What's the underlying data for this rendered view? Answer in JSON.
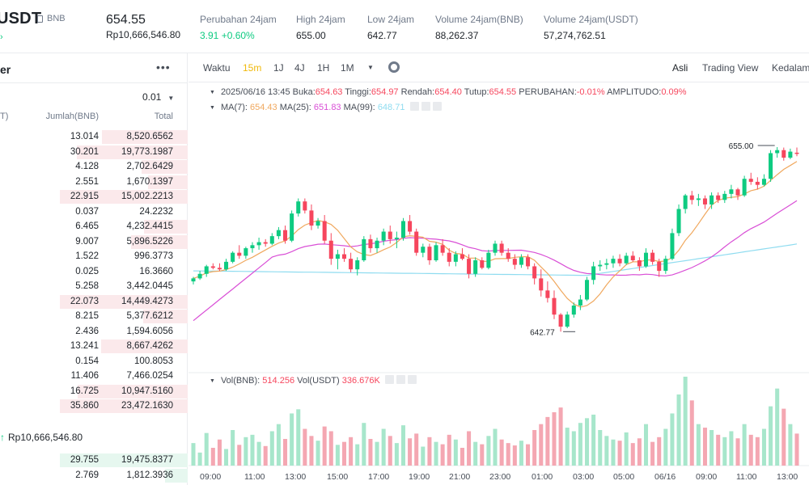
{
  "header": {
    "pair": "USDT",
    "base_tag": "BNB",
    "price": "654.55",
    "price_idr": "Rp10,666,546.80",
    "stats": [
      {
        "label": "Perubahan 24jam",
        "value": "3.91 +0.60%",
        "green": true
      },
      {
        "label": "High 24jam",
        "value": "655.00"
      },
      {
        "label": "Low 24jam",
        "value": "642.77"
      },
      {
        "label": "Volume 24jam(BNB)",
        "value": "88,262.37"
      },
      {
        "label": "Volume 24jam(USDT)",
        "value": "57,274,762.51"
      }
    ]
  },
  "orderbook": {
    "title": "er",
    "more": "•••",
    "step": "0.01",
    "col_price": "T)",
    "col_amount": "Jumlah(BNB)",
    "col_total": "Total",
    "asks": [
      {
        "amount": "13.014",
        "total": "8,520.6562",
        "depth": 0.67
      },
      {
        "amount": "30.201",
        "total": "19,773.1987",
        "depth": 0.87
      },
      {
        "amount": "4.128",
        "total": "2,702.6429",
        "depth": 0.36
      },
      {
        "amount": "2.551",
        "total": "1,670.1397",
        "depth": 0.31
      },
      {
        "amount": "22.915",
        "total": "15,002.2213",
        "depth": 1.0
      },
      {
        "amount": "0.037",
        "total": "24.2232",
        "depth": 0.0
      },
      {
        "amount": "6.465",
        "total": "4,232.4415",
        "depth": 0.34
      },
      {
        "amount": "9.007",
        "total": "5,896.5226",
        "depth": 0.44
      },
      {
        "amount": "1.522",
        "total": "996.3773",
        "depth": 0.0
      },
      {
        "amount": "0.025",
        "total": "16.3660",
        "depth": 0.0
      },
      {
        "amount": "5.258",
        "total": "3,442.0445",
        "depth": 0.0
      },
      {
        "amount": "22.073",
        "total": "14,449.4273",
        "depth": 1.0
      },
      {
        "amount": "8.215",
        "total": "5,377.6212",
        "depth": 0.35
      },
      {
        "amount": "2.436",
        "total": "1,594.6056",
        "depth": 0.0
      },
      {
        "amount": "13.241",
        "total": "8,667.4262",
        "depth": 0.68
      },
      {
        "amount": "0.154",
        "total": "100.8053",
        "depth": 0.0
      },
      {
        "amount": "11.406",
        "total": "7,466.0254",
        "depth": 0.0
      },
      {
        "amount": "16.725",
        "total": "10,947.5160",
        "depth": 0.86
      },
      {
        "amount": "35.860",
        "total": "23,472.1630",
        "depth": 1.0
      }
    ],
    "mid_price": "Rp10,666,546.80",
    "bids": [
      {
        "amount": "29.755",
        "total": "19,475.8377",
        "depth": 1.0
      },
      {
        "amount": "2.769",
        "total": "1,812.3936",
        "depth": 0.18
      }
    ]
  },
  "chart": {
    "toolbar": {
      "time_label": "Waktu",
      "intervals": [
        "15m",
        "1J",
        "4J",
        "1H",
        "1M"
      ],
      "active_interval": "15m",
      "views": [
        "Asli",
        "Trading View",
        "Kedalam"
      ],
      "active_view": "Asli"
    },
    "ohlc": {
      "date": "2025/06/16 13:45",
      "open_label": "Buka:",
      "open": "654.63",
      "high_label": "Tinggi:",
      "high": "654.97",
      "low_label": "Rendah:",
      "low": "654.40",
      "close_label": "Tutup:",
      "close": "654.55",
      "change_label": "PERUBAHAN:",
      "change": "-0.01%",
      "amp_label": "AMPLITUDO:",
      "amp": "0.09%"
    },
    "ma": {
      "ma7_label": "MA(7):",
      "ma7": "654.43",
      "ma25_label": "MA(25):",
      "ma25": "651.83",
      "ma99_label": "MA(99):",
      "ma99": "648.71"
    },
    "vol": {
      "label": "Vol(BNB):",
      "bnb": "514.256",
      "usdt_label": "Vol(USDT)",
      "usdt": "336.676K"
    },
    "high_marker": "655.00",
    "low_marker": "642.77",
    "x_ticks": [
      "09:00",
      "11:00",
      "13:00",
      "15:00",
      "17:00",
      "19:00",
      "21:00",
      "23:00",
      "01:00",
      "03:00",
      "05:00",
      "06/16",
      "09:00",
      "11:00",
      "13:00"
    ],
    "colors": {
      "up": "#0ecb81",
      "down": "#f6465d",
      "ma7": "#f0a85e",
      "ma25": "#d94fd6",
      "ma99": "#8fdcf0"
    }
  },
  "chart_data": {
    "type": "candlestick",
    "price_range": [
      641.5,
      656.5
    ],
    "candles": [
      [
        646.1,
        646.4,
        645.9,
        646.3
      ],
      [
        646.3,
        646.8,
        646.2,
        646.6
      ],
      [
        646.6,
        647.2,
        646.4,
        647.1
      ],
      [
        647.1,
        647.3,
        646.9,
        647.0
      ],
      [
        647.0,
        647.3,
        646.8,
        646.9
      ],
      [
        646.9,
        647.6,
        646.8,
        647.4
      ],
      [
        647.4,
        648.1,
        647.3,
        648.0
      ],
      [
        648.0,
        648.5,
        647.6,
        647.8
      ],
      [
        647.8,
        648.4,
        647.6,
        648.3
      ],
      [
        648.3,
        648.7,
        648.0,
        648.5
      ],
      [
        648.5,
        649.0,
        648.2,
        648.7
      ],
      [
        648.7,
        648.9,
        648.4,
        648.6
      ],
      [
        648.6,
        649.3,
        648.5,
        649.1
      ],
      [
        649.1,
        649.7,
        648.9,
        649.5
      ],
      [
        649.5,
        649.8,
        648.6,
        648.8
      ],
      [
        648.8,
        650.8,
        648.7,
        650.6
      ],
      [
        650.6,
        651.6,
        650.4,
        651.4
      ],
      [
        651.4,
        651.6,
        650.6,
        650.8
      ],
      [
        650.8,
        651.2,
        649.5,
        649.8
      ],
      [
        649.8,
        650.3,
        649.6,
        650.1
      ],
      [
        650.1,
        650.5,
        648.6,
        648.8
      ],
      [
        648.8,
        649.3,
        647.2,
        647.6
      ],
      [
        647.6,
        648.2,
        646.9,
        647.9
      ],
      [
        647.9,
        648.3,
        647.4,
        647.6
      ],
      [
        647.6,
        648.0,
        646.7,
        646.9
      ],
      [
        646.9,
        647.7,
        646.5,
        647.5
      ],
      [
        647.5,
        649.1,
        647.4,
        648.9
      ],
      [
        648.9,
        649.2,
        648.0,
        648.3
      ],
      [
        648.3,
        649.0,
        648.0,
        648.8
      ],
      [
        648.8,
        649.6,
        648.5,
        649.4
      ],
      [
        649.4,
        649.8,
        648.6,
        648.9
      ],
      [
        648.9,
        649.4,
        648.3,
        649.0
      ],
      [
        649.0,
        650.3,
        648.8,
        650.1
      ],
      [
        650.1,
        650.5,
        649.2,
        649.4
      ],
      [
        649.4,
        649.6,
        647.8,
        648.0
      ],
      [
        648.0,
        648.6,
        647.7,
        648.4
      ],
      [
        648.4,
        648.6,
        647.2,
        647.5
      ],
      [
        647.5,
        648.7,
        647.4,
        648.5
      ],
      [
        648.5,
        648.9,
        647.8,
        648.0
      ],
      [
        648.0,
        648.3,
        647.1,
        647.4
      ],
      [
        647.4,
        648.1,
        647.1,
        647.9
      ],
      [
        647.9,
        648.3,
        647.5,
        647.6
      ],
      [
        647.6,
        647.9,
        646.3,
        646.6
      ],
      [
        646.6,
        647.7,
        646.4,
        647.5
      ],
      [
        647.5,
        647.7,
        646.9,
        647.0
      ],
      [
        647.0,
        648.2,
        646.9,
        648.0
      ],
      [
        648.0,
        648.8,
        647.8,
        648.6
      ],
      [
        648.6,
        648.8,
        647.8,
        648.0
      ],
      [
        648.0,
        648.3,
        647.4,
        647.6
      ],
      [
        647.6,
        647.9,
        646.9,
        647.2
      ],
      [
        647.2,
        647.9,
        647.0,
        647.7
      ],
      [
        647.7,
        647.9,
        646.9,
        647.1
      ],
      [
        647.1,
        647.3,
        645.9,
        646.3
      ],
      [
        646.3,
        646.9,
        645.1,
        645.5
      ],
      [
        645.5,
        646.1,
        644.7,
        645.0
      ],
      [
        645.0,
        645.5,
        643.6,
        643.9
      ],
      [
        643.9,
        644.0,
        642.77,
        643.1
      ],
      [
        643.1,
        644.1,
        643.0,
        643.9
      ],
      [
        643.9,
        644.7,
        643.7,
        644.5
      ],
      [
        644.5,
        645.2,
        644.2,
        644.9
      ],
      [
        644.9,
        646.4,
        644.8,
        646.2
      ],
      [
        646.2,
        647.4,
        645.9,
        647.1
      ],
      [
        647.1,
        647.5,
        646.8,
        647.2
      ],
      [
        647.2,
        647.6,
        646.9,
        647.3
      ],
      [
        647.3,
        647.8,
        647.0,
        647.6
      ],
      [
        647.6,
        647.9,
        647.1,
        647.3
      ],
      [
        647.3,
        648.0,
        647.2,
        647.8
      ],
      [
        647.8,
        648.1,
        647.4,
        647.5
      ],
      [
        647.5,
        647.7,
        646.8,
        647.1
      ],
      [
        647.1,
        648.3,
        647.0,
        648.0
      ],
      [
        648.0,
        648.2,
        647.2,
        647.4
      ],
      [
        647.4,
        647.6,
        646.4,
        646.8
      ],
      [
        646.8,
        647.8,
        646.6,
        647.6
      ],
      [
        647.6,
        649.6,
        647.5,
        649.3
      ],
      [
        649.3,
        651.2,
        649.1,
        650.9
      ],
      [
        650.9,
        651.9,
        650.6,
        651.8
      ],
      [
        651.8,
        652.1,
        651.2,
        651.5
      ],
      [
        651.5,
        651.9,
        651.1,
        651.6
      ],
      [
        651.6,
        651.8,
        650.9,
        651.2
      ],
      [
        651.2,
        652.0,
        650.9,
        651.8
      ],
      [
        651.8,
        652.0,
        651.3,
        651.5
      ],
      [
        651.5,
        652.1,
        651.3,
        651.9
      ],
      [
        651.9,
        652.5,
        651.6,
        652.2
      ],
      [
        652.2,
        652.3,
        651.5,
        651.8
      ],
      [
        651.8,
        653.1,
        651.7,
        652.9
      ],
      [
        652.9,
        653.3,
        652.5,
        652.7
      ],
      [
        652.7,
        653.0,
        652.2,
        652.5
      ],
      [
        652.5,
        653.2,
        652.4,
        652.9
      ],
      [
        652.9,
        654.8,
        652.7,
        654.6
      ],
      [
        654.6,
        655.0,
        654.3,
        654.8
      ],
      [
        654.8,
        654.97,
        654.1,
        654.3
      ],
      [
        654.3,
        654.9,
        654.2,
        654.7
      ],
      [
        654.63,
        654.97,
        654.4,
        654.55
      ]
    ],
    "volumes": [
      38,
      22,
      55,
      30,
      44,
      28,
      60,
      35,
      48,
      52,
      40,
      33,
      58,
      70,
      45,
      88,
      95,
      62,
      50,
      42,
      66,
      58,
      35,
      40,
      48,
      36,
      72,
      45,
      40,
      62,
      50,
      38,
      68,
      46,
      54,
      32,
      48,
      40,
      36,
      52,
      44,
      30,
      58,
      40,
      36,
      50,
      62,
      44,
      38,
      34,
      42,
      36,
      60,
      70,
      82,
      90,
      98,
      64,
      58,
      72,
      80,
      86,
      60,
      50,
      44,
      42,
      56,
      38,
      46,
      70,
      40,
      48,
      62,
      88,
      120,
      150,
      110,
      70,
      64,
      60,
      52,
      48,
      58,
      46,
      70,
      52,
      48,
      62,
      100,
      130,
      96,
      70,
      54
    ]
  }
}
